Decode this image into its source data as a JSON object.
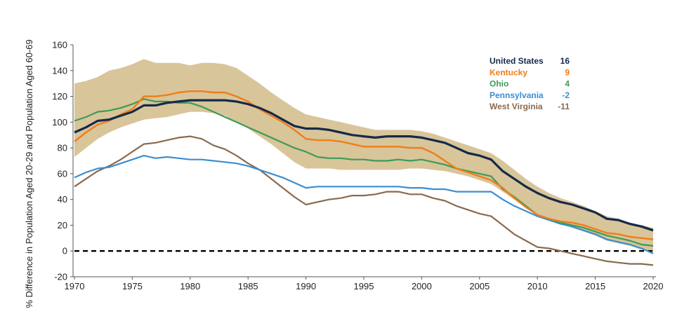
{
  "chart_data": {
    "type": "line",
    "title": "",
    "xlabel": "",
    "ylabel": "% Difference in Population Aged 20-29 and Population Aged 60-69",
    "xlim": [
      1970,
      2020
    ],
    "ylim": [
      -20,
      160
    ],
    "xticks": [
      "1970",
      "1975",
      "1980",
      "1985",
      "1990",
      "1995",
      "2000",
      "2005",
      "2010",
      "2015",
      "2020"
    ],
    "yticks": [
      "-20",
      "0",
      "20",
      "40",
      "60",
      "80",
      "100",
      "120",
      "140",
      "160"
    ],
    "grid": false,
    "legend_position": "top-right",
    "reference_line": {
      "y": 0,
      "style": "dashed",
      "color": "#000000"
    },
    "band": {
      "color": "#d8c59a",
      "x": [
        1970,
        1971,
        1972,
        1973,
        1974,
        1975,
        1976,
        1977,
        1978,
        1979,
        1980,
        1981,
        1982,
        1983,
        1984,
        1985,
        1986,
        1987,
        1988,
        1989,
        1990,
        1991,
        1992,
        1993,
        1994,
        1995,
        1996,
        1997,
        1998,
        1999,
        2000,
        2001,
        2002,
        2003,
        2004,
        2005,
        2006,
        2007,
        2008,
        2009,
        2010,
        2011,
        2012,
        2013,
        2014,
        2015,
        2016,
        2017,
        2018,
        2019,
        2020
      ],
      "upper": [
        130,
        132,
        135,
        140,
        142,
        145,
        149,
        146,
        146,
        146,
        144,
        146,
        146,
        145,
        142,
        136,
        130,
        123,
        117,
        111,
        106,
        104,
        102,
        100,
        98,
        96,
        94,
        94,
        94,
        94,
        93,
        91,
        88,
        85,
        82,
        79,
        76,
        70,
        63,
        56,
        50,
        45,
        41,
        38,
        35,
        31,
        27,
        25,
        22,
        20,
        18
      ],
      "lower": [
        73,
        80,
        87,
        92,
        96,
        99,
        102,
        103,
        104,
        106,
        108,
        108,
        107,
        105,
        100,
        95,
        89,
        83,
        76,
        69,
        64,
        64,
        64,
        63,
        63,
        63,
        63,
        63,
        63,
        64,
        64,
        63,
        62,
        60,
        58,
        55,
        52,
        46,
        40,
        34,
        28,
        24,
        21,
        18,
        15,
        12,
        8,
        6,
        4,
        1,
        -1
      ]
    },
    "series": [
      {
        "name": "United States",
        "label_value": "16",
        "color": "#16294a",
        "width": 3.2,
        "values": [
          92,
          96,
          101,
          102,
          105,
          108,
          113,
          113,
          115,
          116,
          117,
          117,
          117,
          117,
          116,
          114,
          111,
          107,
          102,
          97,
          95,
          95,
          94,
          92,
          90,
          89,
          88,
          89,
          89,
          89,
          88,
          86,
          84,
          80,
          76,
          74,
          71,
          62,
          56,
          50,
          45,
          41,
          38,
          36,
          33,
          30,
          25,
          24,
          21,
          19,
          16
        ]
      },
      {
        "name": "Kentucky",
        "label_value": "9",
        "color": "#f07d1a",
        "width": 2.4,
        "values": [
          85,
          92,
          98,
          101,
          106,
          110,
          120,
          120,
          121,
          123,
          124,
          124,
          123,
          123,
          120,
          116,
          110,
          105,
          100,
          94,
          87,
          86,
          86,
          85,
          83,
          81,
          81,
          81,
          81,
          80,
          80,
          76,
          70,
          64,
          61,
          58,
          55,
          49,
          41,
          34,
          28,
          25,
          23,
          22,
          20,
          17,
          14,
          13,
          11,
          10,
          9
        ]
      },
      {
        "name": "Ohio",
        "label_value": "4",
        "color": "#3d9b57",
        "width": 2.2,
        "values": [
          101,
          104,
          108,
          109,
          111,
          114,
          118,
          116,
          116,
          115,
          115,
          112,
          108,
          104,
          100,
          96,
          92,
          88,
          84,
          80,
          77,
          73,
          72,
          72,
          71,
          71,
          70,
          70,
          71,
          70,
          71,
          69,
          67,
          64,
          62,
          60,
          58,
          48,
          42,
          35,
          28,
          25,
          22,
          20,
          18,
          15,
          12,
          10,
          8,
          5,
          4
        ]
      },
      {
        "name": "Pennsylvania",
        "label_value": "-2",
        "color": "#3b8ed2",
        "width": 2.2,
        "values": [
          57,
          61,
          64,
          65,
          68,
          71,
          74,
          72,
          73,
          72,
          71,
          71,
          70,
          69,
          68,
          66,
          63,
          60,
          57,
          53,
          49,
          50,
          50,
          50,
          50,
          50,
          50,
          50,
          50,
          49,
          49,
          48,
          48,
          46,
          46,
          46,
          46,
          40,
          35,
          31,
          27,
          24,
          21,
          19,
          16,
          13,
          9,
          7,
          5,
          2,
          -2
        ]
      },
      {
        "name": "West Virginia",
        "label_value": "-11",
        "color": "#8a6a4f",
        "width": 2.2,
        "values": [
          50,
          56,
          62,
          66,
          71,
          77,
          83,
          84,
          86,
          88,
          89,
          87,
          82,
          79,
          74,
          68,
          63,
          56,
          49,
          42,
          36,
          38,
          40,
          41,
          43,
          43,
          44,
          46,
          46,
          44,
          44,
          41,
          39,
          35,
          32,
          29,
          27,
          20,
          13,
          8,
          3,
          2,
          0,
          -2,
          -4,
          -6,
          -8,
          -9,
          -10,
          -10,
          -11
        ]
      }
    ]
  }
}
